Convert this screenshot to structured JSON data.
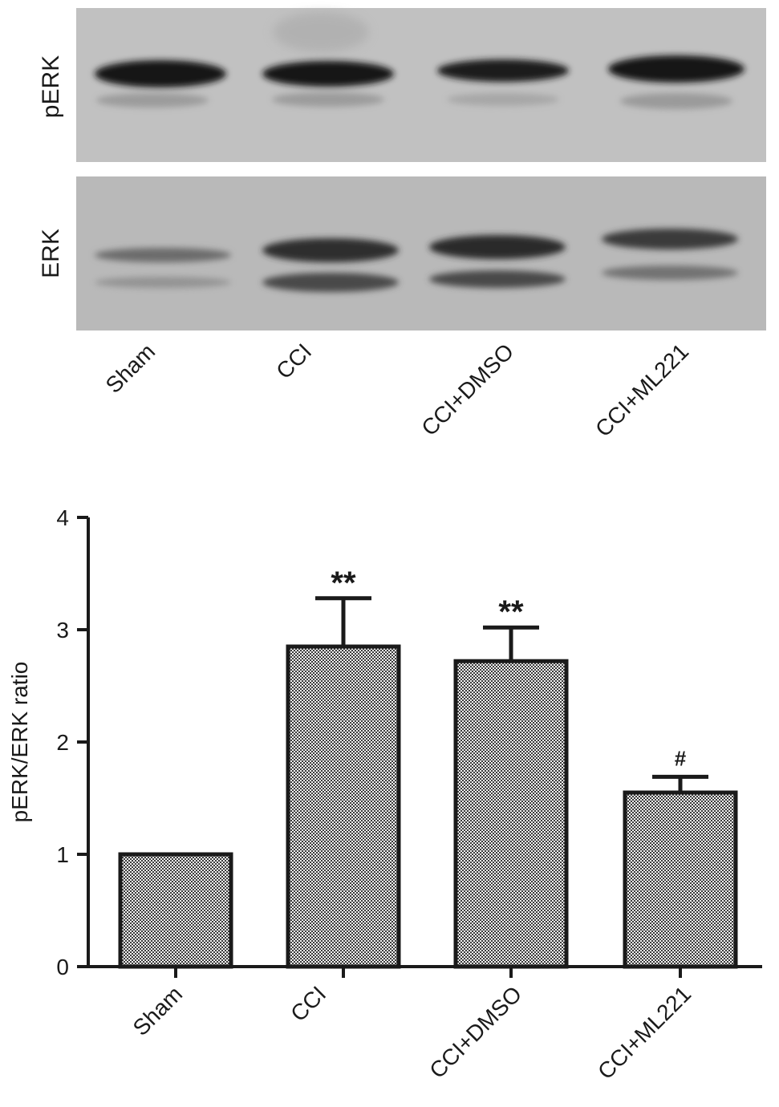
{
  "blot": {
    "rows": [
      {
        "label": "pERK"
      },
      {
        "label": "ERK"
      }
    ],
    "lanes": [
      "Sham",
      "CCI",
      "CCI+DMSO",
      "CCI+ML221"
    ]
  },
  "chart_data": {
    "type": "bar",
    "categories": [
      "Sham",
      "CCI",
      "CCI+DMSO",
      "CCI+ML221"
    ],
    "values": [
      1.0,
      2.85,
      2.72,
      1.55
    ],
    "errors": [
      0,
      0.43,
      0.3,
      0.14
    ],
    "annotations": [
      "",
      "**",
      "**",
      "#"
    ],
    "ylabel": "pERK/ERK ratio",
    "ylim": [
      0,
      4
    ],
    "yticks": [
      0,
      1,
      2,
      3,
      4
    ],
    "bar_pattern": "checkered dark gray",
    "colors": {
      "bar_fill_pattern": "#3a3a3a",
      "bar_edge": "#1a1a1a",
      "axis": "#1a1a1a"
    }
  }
}
